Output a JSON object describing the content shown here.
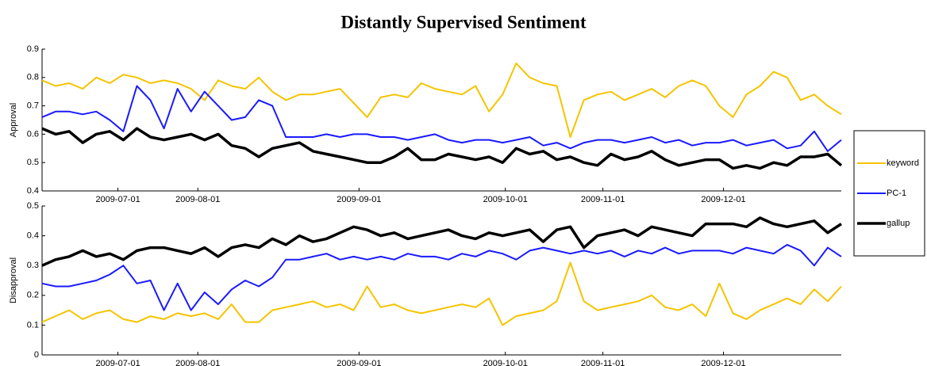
{
  "chart_data": [
    {
      "type": "line",
      "title": "Distantly Supervised Sentiment",
      "ylabel": "Approval",
      "legend": "right",
      "x": [
        0,
        1,
        2,
        3,
        4,
        5,
        6,
        7,
        8,
        9,
        10,
        11,
        12,
        13,
        14,
        15,
        16,
        17,
        18,
        19,
        20,
        21,
        22,
        23,
        24,
        25,
        26,
        27,
        28,
        29,
        30,
        31,
        32,
        33,
        34,
        35,
        36,
        37,
        38,
        39,
        40,
        41,
        42,
        43,
        44,
        45,
        46,
        47,
        48,
        49,
        50,
        51,
        52,
        53,
        54,
        55,
        56,
        57,
        58,
        59
      ],
      "xlim": [
        0,
        59
      ],
      "xticks": [
        {
          "value": 5.6,
          "label": "2009-07-01"
        },
        {
          "value": 11.5,
          "label": "2009-08-01"
        },
        {
          "value": 23.4,
          "label": "2009-09-01"
        },
        {
          "value": 34.2,
          "label": "2009-10-01"
        },
        {
          "value": 41.4,
          "label": "2009-11-01"
        },
        {
          "value": 50.3,
          "label": "2009-12-01"
        }
      ],
      "ylim": [
        0.4,
        0.9
      ],
      "yticks": [
        0.4,
        0.5,
        0.6,
        0.7,
        0.8,
        0.9
      ],
      "series": [
        {
          "name": "keyword",
          "color": "#f5c400",
          "linewidth": 2,
          "values": [
            0.79,
            0.77,
            0.78,
            0.76,
            0.8,
            0.78,
            0.81,
            0.8,
            0.78,
            0.79,
            0.78,
            0.76,
            0.72,
            0.79,
            0.77,
            0.76,
            0.8,
            0.75,
            0.72,
            0.74,
            0.74,
            0.75,
            0.76,
            0.71,
            0.66,
            0.73,
            0.74,
            0.73,
            0.78,
            0.76,
            0.75,
            0.74,
            0.77,
            0.68,
            0.74,
            0.85,
            0.8,
            0.78,
            0.77,
            0.59,
            0.72,
            0.74,
            0.75,
            0.72,
            0.74,
            0.76,
            0.73,
            0.77,
            0.79,
            0.77,
            0.7,
            0.66,
            0.74,
            0.77,
            0.82,
            0.8,
            0.72,
            0.74,
            0.7,
            0.67
          ]
        },
        {
          "name": "PC-1",
          "color": "#1a1aff",
          "linewidth": 2,
          "values": [
            0.66,
            0.68,
            0.68,
            0.67,
            0.68,
            0.65,
            0.61,
            0.77,
            0.72,
            0.62,
            0.76,
            0.68,
            0.75,
            0.7,
            0.65,
            0.66,
            0.72,
            0.7,
            0.59,
            0.59,
            0.59,
            0.6,
            0.59,
            0.6,
            0.6,
            0.59,
            0.59,
            0.58,
            0.59,
            0.6,
            0.58,
            0.57,
            0.58,
            0.58,
            0.57,
            0.58,
            0.59,
            0.56,
            0.57,
            0.55,
            0.57,
            0.58,
            0.58,
            0.57,
            0.58,
            0.59,
            0.57,
            0.58,
            0.56,
            0.57,
            0.57,
            0.58,
            0.56,
            0.57,
            0.58,
            0.55,
            0.56,
            0.61,
            0.54,
            0.58
          ]
        },
        {
          "name": "gallup",
          "color": "#000000",
          "linewidth": 3.5,
          "values": [
            0.62,
            0.6,
            0.61,
            0.57,
            0.6,
            0.61,
            0.58,
            0.62,
            0.59,
            0.58,
            0.59,
            0.6,
            0.58,
            0.6,
            0.56,
            0.55,
            0.52,
            0.55,
            0.56,
            0.57,
            0.54,
            0.53,
            0.52,
            0.51,
            0.5,
            0.5,
            0.52,
            0.55,
            0.51,
            0.51,
            0.53,
            0.52,
            0.51,
            0.52,
            0.5,
            0.55,
            0.53,
            0.54,
            0.51,
            0.52,
            0.5,
            0.49,
            0.53,
            0.51,
            0.52,
            0.54,
            0.51,
            0.49,
            0.5,
            0.51,
            0.51,
            0.48,
            0.49,
            0.48,
            0.5,
            0.49,
            0.52,
            0.52,
            0.53,
            0.49
          ]
        }
      ]
    },
    {
      "type": "line",
      "ylabel": "Disapproval",
      "x": [
        0,
        1,
        2,
        3,
        4,
        5,
        6,
        7,
        8,
        9,
        10,
        11,
        12,
        13,
        14,
        15,
        16,
        17,
        18,
        19,
        20,
        21,
        22,
        23,
        24,
        25,
        26,
        27,
        28,
        29,
        30,
        31,
        32,
        33,
        34,
        35,
        36,
        37,
        38,
        39,
        40,
        41,
        42,
        43,
        44,
        45,
        46,
        47,
        48,
        49,
        50,
        51,
        52,
        53,
        54,
        55,
        56,
        57,
        58,
        59
      ],
      "xlim": [
        0,
        59
      ],
      "xticks": [
        {
          "value": 5.6,
          "label": "2009-07-01"
        },
        {
          "value": 11.5,
          "label": "2009-08-01"
        },
        {
          "value": 23.4,
          "label": "2009-09-01"
        },
        {
          "value": 34.2,
          "label": "2009-10-01"
        },
        {
          "value": 41.4,
          "label": "2009-11-01"
        },
        {
          "value": 50.3,
          "label": "2009-12-01"
        }
      ],
      "ylim": [
        0,
        0.5
      ],
      "yticks": [
        0,
        0.1,
        0.2,
        0.3,
        0.4,
        0.5
      ],
      "series": [
        {
          "color": "#f5c400",
          "linewidth": 2,
          "values": [
            0.11,
            0.13,
            0.15,
            0.12,
            0.14,
            0.15,
            0.12,
            0.11,
            0.13,
            0.12,
            0.14,
            0.13,
            0.14,
            0.12,
            0.17,
            0.11,
            0.11,
            0.15,
            0.16,
            0.17,
            0.18,
            0.16,
            0.17,
            0.15,
            0.23,
            0.16,
            0.17,
            0.15,
            0.14,
            0.15,
            0.16,
            0.17,
            0.16,
            0.19,
            0.1,
            0.13,
            0.14,
            0.15,
            0.18,
            0.31,
            0.18,
            0.15,
            0.16,
            0.17,
            0.18,
            0.2,
            0.16,
            0.15,
            0.17,
            0.13,
            0.24,
            0.14,
            0.12,
            0.15,
            0.17,
            0.19,
            0.17,
            0.22,
            0.18,
            0.23
          ]
        },
        {
          "color": "#1a1aff",
          "linewidth": 2,
          "values": [
            0.24,
            0.23,
            0.23,
            0.24,
            0.25,
            0.27,
            0.3,
            0.24,
            0.25,
            0.15,
            0.24,
            0.15,
            0.21,
            0.17,
            0.22,
            0.25,
            0.23,
            0.26,
            0.32,
            0.32,
            0.33,
            0.34,
            0.32,
            0.33,
            0.32,
            0.33,
            0.32,
            0.34,
            0.33,
            0.33,
            0.32,
            0.34,
            0.33,
            0.35,
            0.34,
            0.32,
            0.35,
            0.36,
            0.35,
            0.34,
            0.35,
            0.34,
            0.35,
            0.33,
            0.35,
            0.34,
            0.36,
            0.34,
            0.35,
            0.35,
            0.35,
            0.34,
            0.36,
            0.35,
            0.34,
            0.37,
            0.35,
            0.3,
            0.36,
            0.33
          ]
        },
        {
          "color": "#000000",
          "linewidth": 3.5,
          "values": [
            0.3,
            0.32,
            0.33,
            0.35,
            0.33,
            0.34,
            0.32,
            0.35,
            0.36,
            0.36,
            0.35,
            0.34,
            0.36,
            0.33,
            0.36,
            0.37,
            0.36,
            0.39,
            0.37,
            0.4,
            0.38,
            0.39,
            0.41,
            0.43,
            0.42,
            0.4,
            0.41,
            0.39,
            0.4,
            0.41,
            0.42,
            0.4,
            0.39,
            0.41,
            0.4,
            0.41,
            0.42,
            0.38,
            0.42,
            0.43,
            0.36,
            0.4,
            0.41,
            0.42,
            0.4,
            0.43,
            0.42,
            0.41,
            0.4,
            0.44,
            0.44,
            0.44,
            0.43,
            0.46,
            0.44,
            0.43,
            0.44,
            0.45,
            0.41,
            0.44
          ]
        }
      ]
    }
  ]
}
